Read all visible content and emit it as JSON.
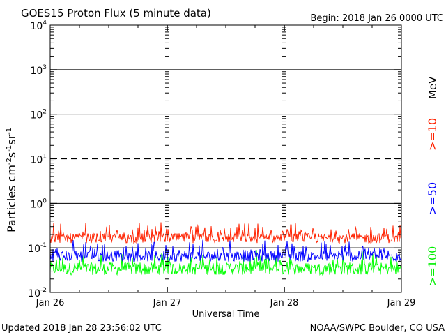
{
  "chart_data": {
    "type": "line",
    "title": "GOES15 Proton Flux (5 minute data)",
    "subtitle": "Begin: 2018 Jan 26 0000 UTC",
    "xlabel": "Universal Time",
    "ylabel": "Particles cm",
    "ylabel_exponents": [
      "-2",
      "-1",
      "-1"
    ],
    "ylabel_units": [
      "s",
      "sr"
    ],
    "y_scale": "log",
    "ylim": [
      0.01,
      10000
    ],
    "y_ticks": [
      {
        "base": "10",
        "exp": "4",
        "value": 10000
      },
      {
        "base": "10",
        "exp": "3",
        "value": 1000
      },
      {
        "base": "10",
        "exp": "2",
        "value": 100
      },
      {
        "base": "10",
        "exp": "1",
        "value": 10
      },
      {
        "base": "10",
        "exp": "0",
        "value": 1
      },
      {
        "base": "10",
        "exp": "-1",
        "value": 0.1
      },
      {
        "base": "10",
        "exp": "-2",
        "value": 0.01
      }
    ],
    "x_ticks": [
      "Jan 26",
      "Jan 27",
      "Jan 28",
      "Jan 29"
    ],
    "xlim": [
      "2018-01-26",
      "2018-01-29"
    ],
    "thresholds": [
      {
        "value": 10,
        "style": "dashed"
      },
      {
        "value": 0.1,
        "style": "solid"
      }
    ],
    "legend_unit": "MeV",
    "series": [
      {
        "name": ">=10",
        "color": "#ff2200",
        "baseline": 0.165,
        "spread": 0.11
      },
      {
        "name": ">=50",
        "color": "#0000ff",
        "baseline": 0.065,
        "spread": 0.12
      },
      {
        "name": ">=100",
        "color": "#00ff00",
        "baseline": 0.034,
        "spread": 0.14
      }
    ]
  },
  "footer": {
    "updated": "Updated 2018 Jan 28 23:56:02 UTC",
    "source": "NOAA/SWPC Boulder, CO USA"
  }
}
